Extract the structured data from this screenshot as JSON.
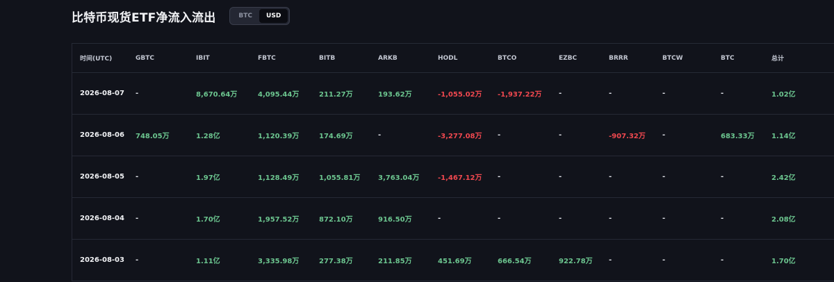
{
  "header": {
    "title": "比特币现货ETF净流入流出",
    "toggle": [
      "BTC",
      "USD"
    ],
    "toggle_active": "USD"
  },
  "table": {
    "columns": [
      "时间(UTC)",
      "GBTC",
      "IBIT",
      "FBTC",
      "BITB",
      "ARKB",
      "HODL",
      "BTCO",
      "EZBC",
      "BRRR",
      "BTCW",
      "BTC",
      "总计"
    ],
    "rows": [
      [
        "2026-08-07",
        "-",
        "8,670.64万",
        "4,095.44万",
        "211.27万",
        "193.62万",
        "-1,055.02万",
        "-1,937.22万",
        "-",
        "-",
        "-",
        "-",
        "1.02亿"
      ],
      [
        "2026-08-06",
        "748.05万",
        "1.28亿",
        "1,120.39万",
        "174.69万",
        "-",
        "-3,277.08万",
        "-",
        "-",
        "-907.32万",
        "-",
        "683.33万",
        "1.14亿"
      ],
      [
        "2026-08-05",
        "-",
        "1.97亿",
        "1,128.49万",
        "1,055.81万",
        "3,763.04万",
        "-1,467.12万",
        "-",
        "-",
        "-",
        "-",
        "-",
        "2.42亿"
      ],
      [
        "2026-08-04",
        "-",
        "1.70亿",
        "1,957.52万",
        "872.10万",
        "916.50万",
        "-",
        "-",
        "-",
        "-",
        "-",
        "-",
        "2.08亿"
      ],
      [
        "2026-08-03",
        "-",
        "1.11亿",
        "3,335.98万",
        "277.38万",
        "211.85万",
        "451.69万",
        "666.54万",
        "922.78万",
        "-",
        "-",
        "-",
        "1.70亿"
      ]
    ]
  },
  "colors": {
    "background": "#11131b",
    "positive": "#6cc58f",
    "negative": "#f0484f",
    "grid": "#262a36"
  }
}
